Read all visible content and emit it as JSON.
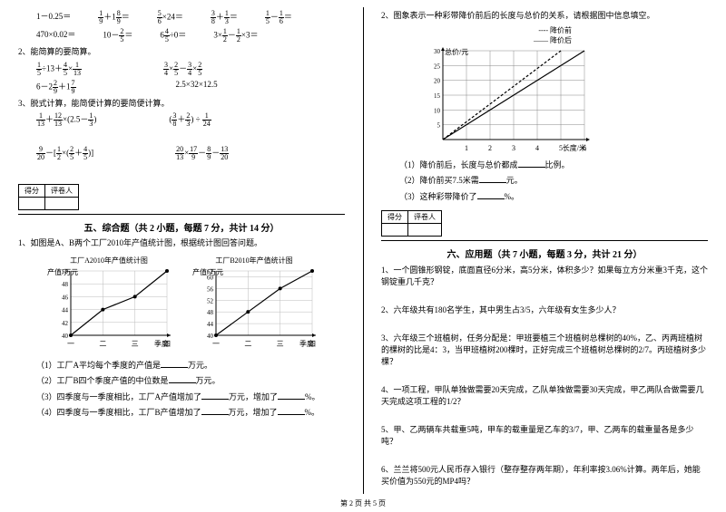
{
  "left": {
    "calc_rows": [
      [
        "1－0.25＝",
        "⁠",
        "⁠",
        "⁠",
        "⁠"
      ],
      [
        "470×0.02＝",
        "⁠",
        "⁠",
        "⁠"
      ]
    ],
    "q2": "2、能简算的要简算。",
    "q3": "3、脱式计算，能简便计算的要简便计算。",
    "score_labels": [
      "得分",
      "评卷人"
    ],
    "section5": "五、综合题（共 2 小题，每题 7 分，共计 14 分）",
    "q5_1": "1、如图是A、B两个工厂2010年产值统计图，根据统计图回答问题。",
    "chartA": {
      "title": "工厂A2010年产值统计图",
      "ylabel": "产值/万元",
      "xlabel": "季度",
      "xticks": [
        "一",
        "二",
        "三",
        "四"
      ],
      "yticks": [
        40,
        42,
        44,
        46,
        48,
        50
      ],
      "points": [
        [
          1,
          40
        ],
        [
          2,
          44
        ],
        [
          3,
          46
        ],
        [
          4,
          50
        ]
      ],
      "line_color": "#000",
      "grid_color": "#bbb"
    },
    "chartB": {
      "title": "工厂B2010年产值统计图",
      "ylabel": "产值/万元",
      "xlabel": "季度",
      "xticks": [
        "一",
        "二",
        "三",
        "四"
      ],
      "yticks": [
        40,
        44,
        48,
        52,
        56,
        60,
        62
      ],
      "points": [
        [
          1,
          40
        ],
        [
          2,
          48
        ],
        [
          3,
          56
        ],
        [
          4,
          62
        ]
      ],
      "line_color": "#000",
      "grid_color": "#bbb"
    },
    "q5_sub": [
      "（1）工厂A平均每个季度的产值是_______万元。",
      "（2）工厂B四个季度产值的中位数是_______万元。",
      "（3）四季度与一季度相比，工厂A产值增加了_______万元，增加了_______%。",
      "（4）四季度与一季度相比，工厂B产值增加了_______万元，增加了_______%。"
    ]
  },
  "right": {
    "q2": "2、图象表示一种彩带降价前后的长度与总价的关系，请根据图中信息填空。",
    "chart2": {
      "ylabel": "总价/元",
      "xlabel": "长度/米",
      "legend": [
        "降价前",
        "降价后"
      ],
      "legend_styles": [
        "dashed",
        "solid"
      ],
      "xticks": [
        1,
        2,
        3,
        4,
        5,
        6
      ],
      "yticks": [
        5,
        10,
        15,
        20,
        25,
        30
      ],
      "line_before": [
        [
          0,
          0
        ],
        [
          5,
          30
        ]
      ],
      "line_after": [
        [
          0,
          0
        ],
        [
          6,
          30
        ]
      ],
      "before_color": "#000",
      "after_color": "#000",
      "grid_color": "#888"
    },
    "q2_sub": [
      "（1）降价前后，长度与总价都成_______比例。",
      "（2）降价前买7.5米需_______元。",
      "（3）这种彩带降价了_______%。"
    ],
    "score_labels": [
      "得分",
      "评卷人"
    ],
    "section6": "六、应用题（共 7 小题，每题 3 分，共计 21 分）",
    "apps": [
      "1、一个圆锥形钢锭，底面直径6分米，高5分米，体积多少？如果每立方分米重3千克，这个钢锭重几千克？",
      "2、六年级共有180名学生，其中男生占3/5，六年级有女生多少人？",
      "3、六年级三个班植树，任务分配是：甲班要植三个班植树总棵树的40%，乙、丙两班植树的棵树的比是4：3，当甲班植树200棵时，正好完成三个班植树总棵树的2/7。丙班植树多少棵？",
      "4、一项工程，甲队单独做需要20天完成，乙队单独做需要30天完成，甲乙两队合做需要几天完成这项工程的1/2？",
      "5、甲、乙两辆车共载重5吨，甲车的载重量是乙车的3/7，甲、乙两车的载重量各是多少吨？",
      "6、兰兰将500元人民币存入银行（整存整存两年期），年利率按3.06%计算。两年后，她能买价值为550元的MP4吗？"
    ]
  },
  "footer": "第 2 页 共 5 页"
}
